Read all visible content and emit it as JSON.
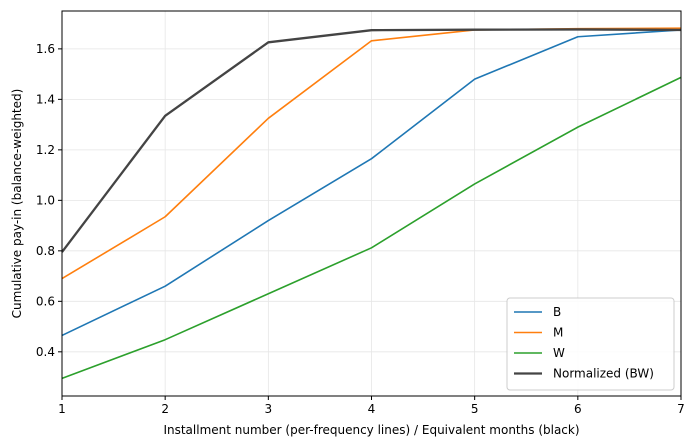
{
  "chart_data": {
    "type": "line",
    "title": "",
    "xlabel": "Installment number (per-frequency lines) / Equivalent months (black)",
    "ylabel": "Cumulative pay-in (balance-weighted)",
    "xlim": [
      1,
      7
    ],
    "ylim": [
      0.225,
      1.75
    ],
    "x_ticks": [
      1,
      2,
      3,
      4,
      5,
      6,
      7
    ],
    "y_ticks": [
      0.4,
      0.6,
      0.8,
      1.0,
      1.2,
      1.4,
      1.6
    ],
    "y_tick_labels": [
      "0.4",
      "0.6",
      "0.8",
      "1.0",
      "1.2",
      "1.4",
      "1.6"
    ],
    "grid": true,
    "legend_position": "lower-right",
    "series": [
      {
        "name": "B",
        "color": "#1f77b4",
        "x": [
          1,
          2,
          3,
          4,
          5,
          6,
          7
        ],
        "values": [
          0.465,
          0.66,
          0.92,
          1.165,
          1.48,
          1.648,
          1.675
        ]
      },
      {
        "name": "M",
        "color": "#ff7f0e",
        "x": [
          1,
          2,
          3,
          4,
          5,
          6,
          7
        ],
        "values": [
          0.69,
          0.935,
          1.325,
          1.632,
          1.675,
          1.68,
          1.682
        ]
      },
      {
        "name": "W",
        "color": "#2ca02c",
        "x": [
          1,
          2,
          3,
          4,
          5,
          6,
          7
        ],
        "values": [
          0.295,
          0.448,
          0.63,
          0.812,
          1.065,
          1.29,
          1.487
        ]
      },
      {
        "name": "Normalized (BW)",
        "color": "#444444",
        "x": [
          1,
          2,
          3,
          4,
          5,
          6,
          7
        ],
        "values": [
          0.795,
          1.335,
          1.626,
          1.674,
          1.676,
          1.677,
          1.675
        ]
      }
    ]
  }
}
